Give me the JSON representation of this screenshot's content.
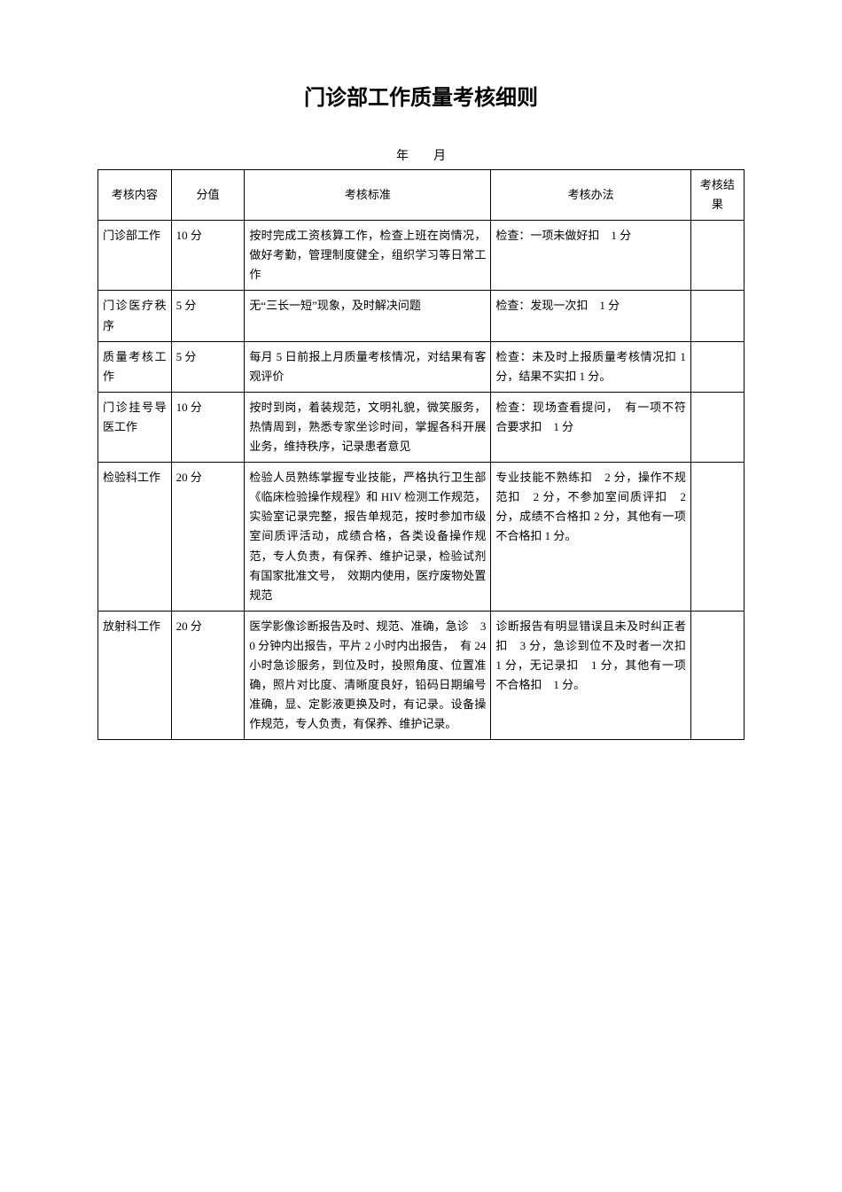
{
  "title": "门诊部工作质量考核细则",
  "date_label": "年　　月",
  "headers": {
    "c1": "考核内容",
    "c2": "分值",
    "c3": "考核标准",
    "c4": "考核办法",
    "c5": "考核结果"
  },
  "rows": [
    {
      "content": "门诊部工作",
      "score": "10 分",
      "standard": "按时完成工资核算工作，检查上班在岗情况，做好考勤，管理制度健全，组织学习等日常工作",
      "method": "检查：一项未做好扣　1 分",
      "result": ""
    },
    {
      "content": "门诊医疗秩序",
      "score": "5 分",
      "standard": "无“三长一短”现象，及时解决问题",
      "method": "检查：发现一次扣　1 分",
      "result": ""
    },
    {
      "content": "质量考核工作",
      "score": "5 分",
      "standard": "每月 5 日前报上月质量考核情况，对结果有客观评价",
      "method": "检查：未及时上报质量考核情况扣 1 分，结果不实扣 1 分。",
      "result": ""
    },
    {
      "content": "门诊挂号导医工作",
      "score": "10 分",
      "standard": "按时到岗，着装规范，文明礼貌，微笑服务，热情周到，熟悉专家坐诊时间，掌握各科开展业务，维持秩序，记录患者意见",
      "method": "检查：现场查看提问，　有一项不符合要求扣　1 分",
      "result": ""
    },
    {
      "content": "检验科工作",
      "score": "20 分",
      "standard": "检验人员熟练掌握专业技能，严格执行卫生部《临床检验操作规程》和 HIV 检测工作规范，实验室记录完整，报告单规范，按时参加市级室间质评活动，成绩合格，各类设备操作规范，专人负责，有保养、维护记录，检验试剂有国家批准文号，　效期内使用，医疗废物处置规范",
      "method": "专业技能不熟练扣　2 分，操作不规范扣　2 分，不参加室间质评扣　2 分，成绩不合格扣 2 分，其他有一项不合格扣 1 分。",
      "result": ""
    },
    {
      "content": "放射科工作",
      "score": "20 分",
      "standard": "医学影像诊断报告及时、规范、准确，急诊　30 分钟内出报告，平片 2 小时内出报告，　有 24 小时急诊服务，到位及时，投照角度、位置准确，照片对比度、清晰度良好，铅码日期编号准确，显、定影液更换及时，有记录。设备操作规范，专人负责，有保养、维护记录。",
      "method": "诊断报告有明显错误且未及时纠正者扣　3 分，急诊到位不及时者一次扣　1 分，无记录扣　1 分，其他有一项不合格扣　1 分。",
      "result": ""
    }
  ]
}
